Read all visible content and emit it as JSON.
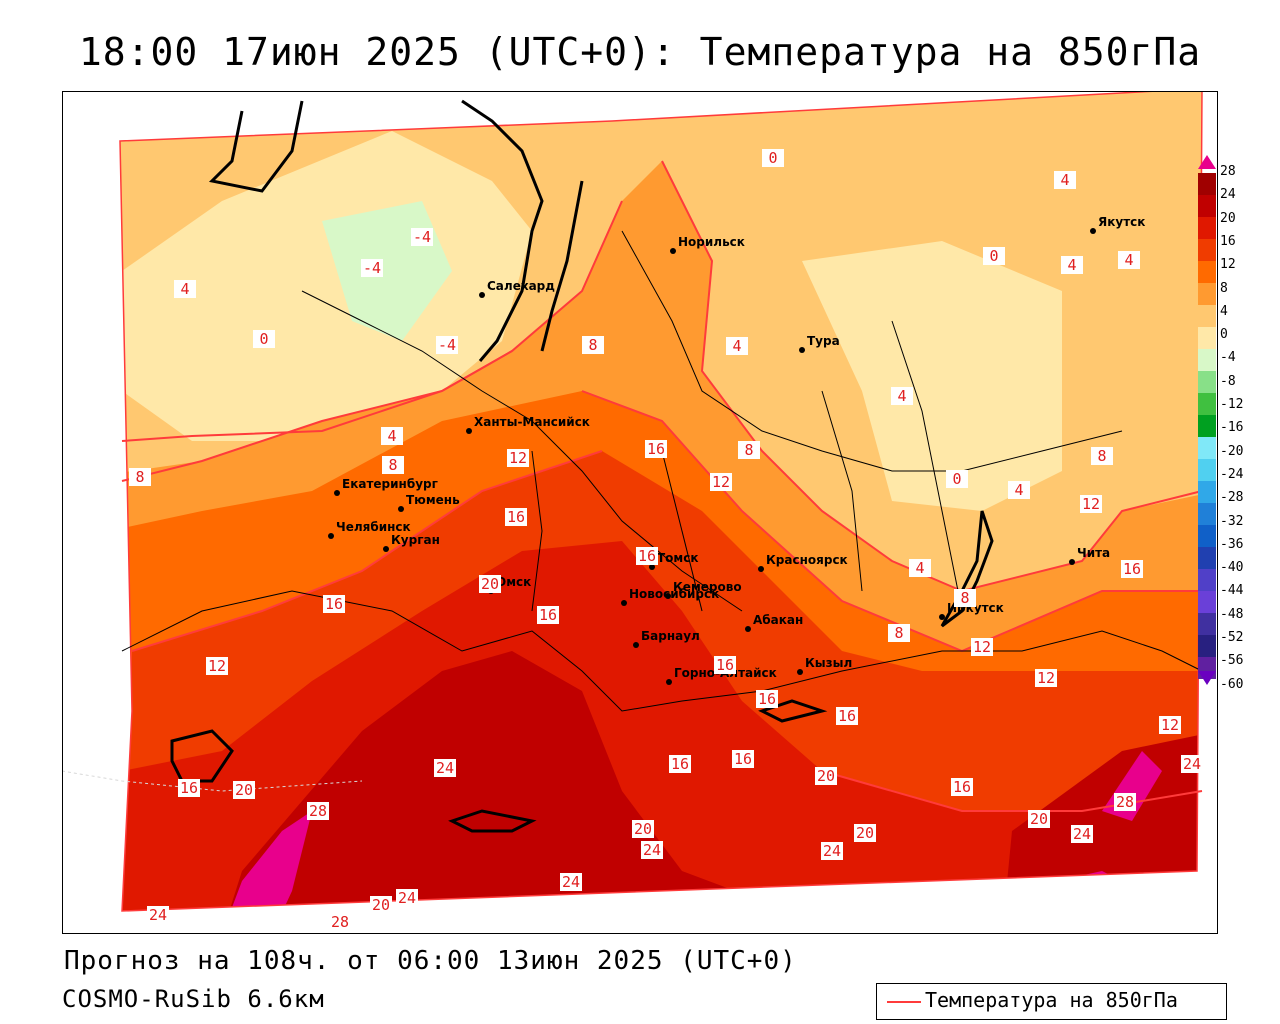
{
  "header": {
    "title": "18:00 17июн 2025 (UTC+0): Температура на 850гПа"
  },
  "footer": {
    "forecast": "Прогноз на 108ч. от 06:00 13июн 2025 (UTC+0)",
    "model": "COSMO-RuSib 6.6км"
  },
  "legend": {
    "label": "Температура на 850гПа",
    "line_color": "#ff3b3b"
  },
  "colorbar": {
    "labels": [
      "28",
      "24",
      "20",
      "16",
      "12",
      "8",
      "4",
      "0",
      "-4",
      "-8",
      "-12",
      "-16",
      "-20",
      "-24",
      "-28",
      "-32",
      "-36",
      "-40",
      "-44",
      "-48",
      "-52",
      "-56",
      "-60"
    ],
    "colors": [
      "#a00000",
      "#c00000",
      "#e01800",
      "#f03c00",
      "#ff6a00",
      "#ff9a30",
      "#ffc870",
      "#ffe8a8",
      "#d8f8c8",
      "#88e088",
      "#40c040",
      "#00a020",
      "#80e8f8",
      "#50d0f0",
      "#30a8e8",
      "#2080d8",
      "#1060c8",
      "#2040b0",
      "#5040c8",
      "#6a40d8",
      "#4030a0",
      "#282080",
      "#6020a0"
    ]
  },
  "cities": [
    {
      "name": "Салехард"
    },
    {
      "name": "Норильск"
    },
    {
      "name": "Якутск"
    },
    {
      "name": "Тура"
    },
    {
      "name": "Ханты-Мансийск"
    },
    {
      "name": "Екатеринбург"
    },
    {
      "name": "Тюмень"
    },
    {
      "name": "Челябинск"
    },
    {
      "name": "Курган"
    },
    {
      "name": "Омск"
    },
    {
      "name": "Новосибирск"
    },
    {
      "name": "Томск"
    },
    {
      "name": "Кемерово"
    },
    {
      "name": "Красноярск"
    },
    {
      "name": "Барнаул"
    },
    {
      "name": "Абакан"
    },
    {
      "name": "Горно-Алтайск"
    },
    {
      "name": "Кызыл"
    },
    {
      "name": "Иркутск"
    },
    {
      "name": "Чита"
    }
  ],
  "contour_labels": [
    {
      "value": "-4"
    },
    {
      "value": "-4"
    },
    {
      "value": "-4"
    },
    {
      "value": "0"
    },
    {
      "value": "0"
    },
    {
      "value": "0"
    },
    {
      "value": "0"
    },
    {
      "value": "4"
    },
    {
      "value": "4"
    },
    {
      "value": "4"
    },
    {
      "value": "4"
    },
    {
      "value": "4"
    },
    {
      "value": "4"
    },
    {
      "value": "4"
    },
    {
      "value": "4"
    },
    {
      "value": "4"
    },
    {
      "value": "8"
    },
    {
      "value": "8"
    },
    {
      "value": "8"
    },
    {
      "value": "8"
    },
    {
      "value": "8"
    },
    {
      "value": "8"
    },
    {
      "value": "8"
    },
    {
      "value": "12"
    },
    {
      "value": "12"
    },
    {
      "value": "12"
    },
    {
      "value": "12"
    },
    {
      "value": "12"
    },
    {
      "value": "12"
    },
    {
      "value": "12"
    },
    {
      "value": "16"
    },
    {
      "value": "16"
    },
    {
      "value": "16"
    },
    {
      "value": "16"
    },
    {
      "value": "16"
    },
    {
      "value": "16"
    },
    {
      "value": "16"
    },
    {
      "value": "16"
    },
    {
      "value": "16"
    },
    {
      "value": "16"
    },
    {
      "value": "16"
    },
    {
      "value": "16"
    },
    {
      "value": "16"
    },
    {
      "value": "20"
    },
    {
      "value": "20"
    },
    {
      "value": "20"
    },
    {
      "value": "20"
    },
    {
      "value": "20"
    },
    {
      "value": "20"
    },
    {
      "value": "20"
    },
    {
      "value": "24"
    },
    {
      "value": "24"
    },
    {
      "value": "24"
    },
    {
      "value": "24"
    },
    {
      "value": "24"
    },
    {
      "value": "24"
    },
    {
      "value": "24"
    },
    {
      "value": "24"
    },
    {
      "value": "28"
    },
    {
      "value": "28"
    },
    {
      "value": "28"
    }
  ]
}
